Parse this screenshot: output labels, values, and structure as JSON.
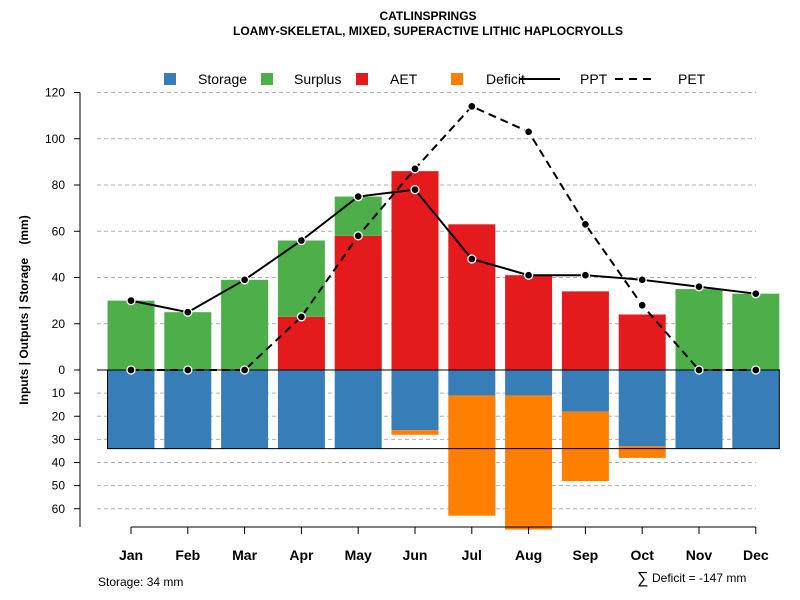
{
  "chart_data": {
    "type": "bar",
    "title": "CATLINSPRINGS",
    "subtitle": "LOAMY-SKELETAL, MIXED, SUPERACTIVE LITHIC HAPLOCRYOLLS",
    "ylabel": "Inputs | Outputs | Storage    (mm)",
    "ylim": [
      -68,
      122
    ],
    "yticks_positive": [
      0,
      20,
      40,
      60,
      80,
      100,
      120
    ],
    "yticks_negative": [
      10,
      20,
      30,
      40,
      50,
      60
    ],
    "categories": [
      "Jan",
      "Feb",
      "Mar",
      "Apr",
      "May",
      "Jun",
      "Jul",
      "Aug",
      "Sep",
      "Oct",
      "Nov",
      "Dec"
    ],
    "legend": {
      "position": "top",
      "entries": [
        {
          "name": "Storage",
          "kind": "box",
          "color": "#377EB8"
        },
        {
          "name": "Surplus",
          "kind": "box",
          "color": "#4DAF4A"
        },
        {
          "name": "AET",
          "kind": "box",
          "color": "#E41A1C"
        },
        {
          "name": "Deficit",
          "kind": "box",
          "color": "#FF7F00"
        },
        {
          "name": "PPT",
          "kind": "line-solid",
          "color": "#000000"
        },
        {
          "name": "PET",
          "kind": "line-dashed",
          "color": "#000000"
        }
      ]
    },
    "series": [
      {
        "name": "AET",
        "color": "#E41A1C",
        "values": [
          0,
          0,
          0,
          23,
          58,
          86,
          63,
          41,
          34,
          24,
          0,
          0
        ]
      },
      {
        "name": "Surplus",
        "color": "#4DAF4A",
        "values": [
          30,
          25,
          39,
          33,
          17,
          0,
          0,
          0,
          0,
          0,
          35,
          33
        ]
      },
      {
        "name": "Storage",
        "color": "#377EB8",
        "values": [
          34,
          34,
          34,
          34,
          34,
          26,
          11,
          11,
          18,
          33,
          34,
          34
        ]
      },
      {
        "name": "Deficit",
        "color": "#FF7F00",
        "values": [
          0,
          0,
          0,
          0,
          0,
          2,
          52,
          58,
          30,
          5,
          0,
          0
        ]
      },
      {
        "name": "PPT",
        "color": "#000000",
        "values": [
          30,
          25,
          39,
          56,
          75,
          78,
          48,
          41,
          41,
          39,
          36,
          33
        ]
      },
      {
        "name": "PET",
        "color": "#000000",
        "values": [
          0,
          0,
          0,
          23,
          58,
          87,
          114,
          103,
          63,
          28,
          0,
          0
        ]
      }
    ],
    "storage_capacity": 34,
    "grid": true
  },
  "footer": {
    "storage_note": "Storage: 34 mm",
    "sum_symbol": "∑",
    "deficit_note": "Deficit = -147 mm"
  }
}
